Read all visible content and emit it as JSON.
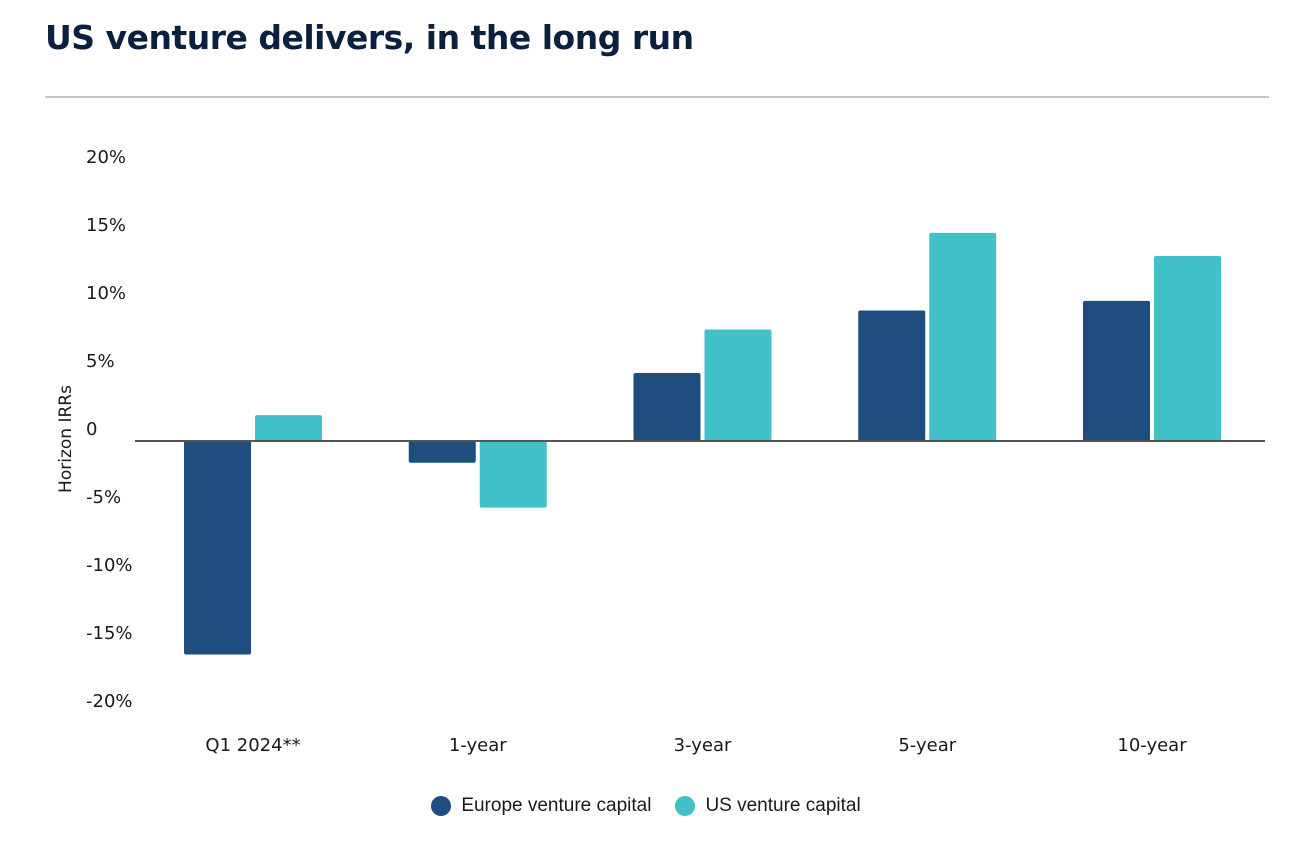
{
  "header": {
    "title": "US  venture delivers, in the long run"
  },
  "colors": {
    "europe": "#1f4e7e",
    "us": "#42c2c8",
    "axis": "#555555",
    "title": "#0b1f3f"
  },
  "chart_data": {
    "type": "bar",
    "title": "US venture delivers, in the long run",
    "xlabel": "",
    "ylabel": "Horizon IRRs",
    "ylim": [
      -20,
      20
    ],
    "y_ticks": [
      20,
      15,
      10,
      5,
      0,
      -5,
      -10,
      -15,
      -20
    ],
    "y_tick_labels": [
      "20%",
      "15%",
      "10%",
      "5%",
      "0",
      "-5%",
      "-10%",
      "-15%",
      "-20%"
    ],
    "grid": false,
    "legend_position": "bottom-center",
    "categories": [
      "Q1 2024**",
      "1-year",
      "3-year",
      "5-year",
      "10-year"
    ],
    "series": [
      {
        "name": "Europe venture capital",
        "color": "#1f4e7e",
        "values": [
          -15.7,
          -1.6,
          5.0,
          9.6,
          10.3
        ]
      },
      {
        "name": "US venture capital",
        "color": "#42c2c8",
        "values": [
          1.9,
          -4.9,
          8.2,
          15.3,
          13.6
        ]
      }
    ],
    "unit": "%"
  }
}
